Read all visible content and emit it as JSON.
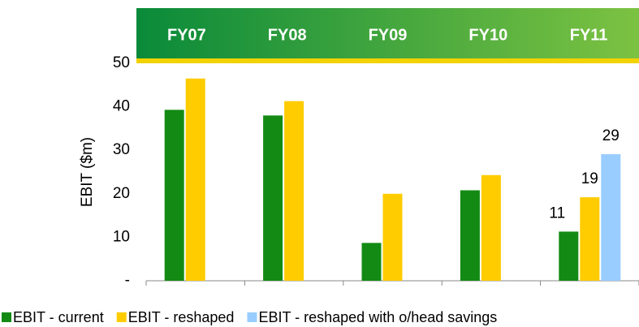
{
  "chart_data": {
    "type": "bar",
    "categories": [
      "FY07",
      "FY08",
      "FY09",
      "FY10",
      "FY11"
    ],
    "y_label": "EBIT ($m)",
    "series": [
      {
        "name": "EBIT - current",
        "color": "#138a13",
        "values": [
          39.3,
          38.0,
          8.7,
          20.8,
          11.3
        ],
        "value_labels": [
          null,
          null,
          null,
          null,
          "11"
        ]
      },
      {
        "name": "EBIT - reshaped",
        "color": "#ffcc00",
        "values": [
          46.5,
          41.3,
          20.0,
          24.3,
          19.2
        ],
        "value_labels": [
          null,
          null,
          null,
          null,
          "19"
        ]
      },
      {
        "name": "EBIT - reshaped with o/head savings",
        "color": "#99ccff",
        "values": [
          null,
          null,
          null,
          null,
          29.1
        ],
        "value_labels": [
          null,
          null,
          null,
          null,
          "29"
        ]
      }
    ],
    "ylim": [
      0,
      50
    ],
    "yticks": [
      {
        "value": 0,
        "label": "-"
      },
      10,
      20,
      30,
      40,
      50
    ],
    "legend": "bottom"
  }
}
